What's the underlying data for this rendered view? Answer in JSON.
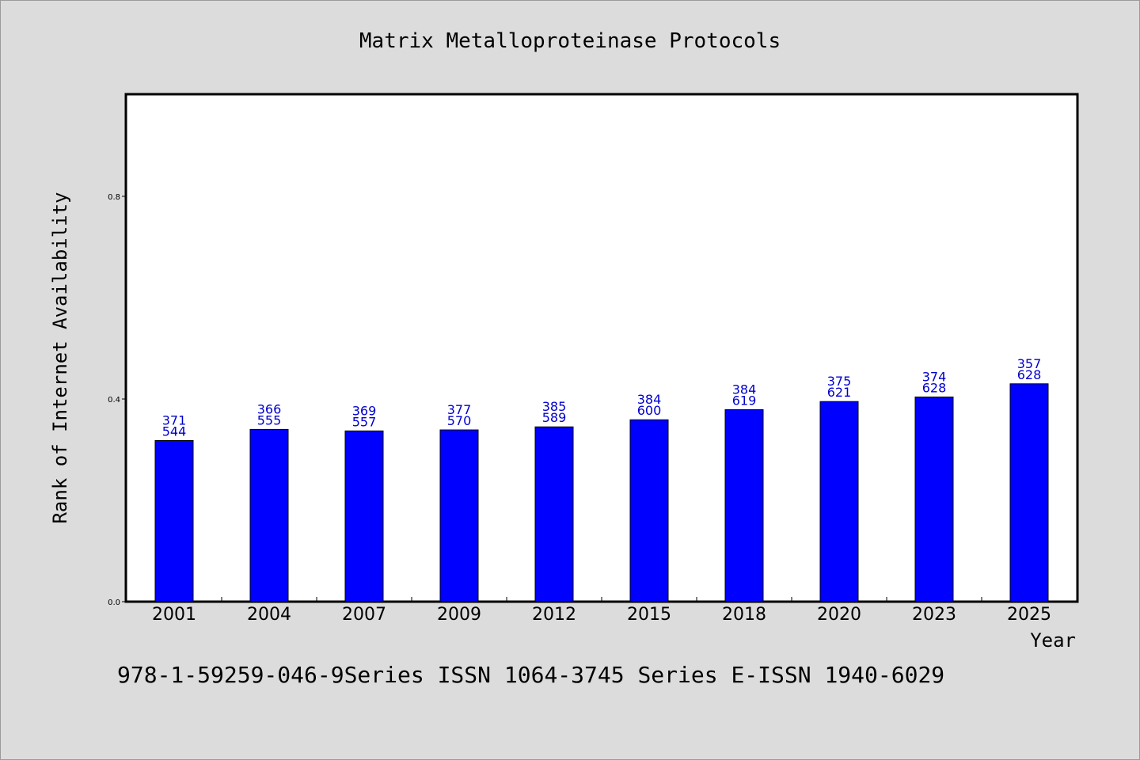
{
  "chart_data": {
    "type": "bar",
    "title": "Matrix Metalloproteinase Protocols",
    "xlabel": "Year",
    "ylabel": "Rank of Internet Availability",
    "ylim": [
      0,
      1.0
    ],
    "yticks": [
      "0.0",
      "0.4",
      "0.8"
    ],
    "ytick_values": [
      0.0,
      0.4,
      0.8
    ],
    "categories": [
      "2001",
      "2004",
      "2007",
      "2009",
      "2012",
      "2015",
      "2018",
      "2020",
      "2023",
      "2025"
    ],
    "values": [
      0.318,
      0.34,
      0.337,
      0.339,
      0.345,
      0.359,
      0.379,
      0.395,
      0.404,
      0.43
    ],
    "labels_top": [
      "371",
      "366",
      "369",
      "377",
      "385",
      "384",
      "384",
      "375",
      "374",
      "357"
    ],
    "labels_bottom": [
      "544",
      "555",
      "557",
      "570",
      "589",
      "600",
      "619",
      "621",
      "628",
      "628"
    ],
    "bar_color": "#0000ff",
    "label_color": "#0000cc",
    "grid": false
  },
  "footer_text": "978-1-59259-046-9Series ISSN 1064-3745 Series E-ISSN 1940-6029"
}
